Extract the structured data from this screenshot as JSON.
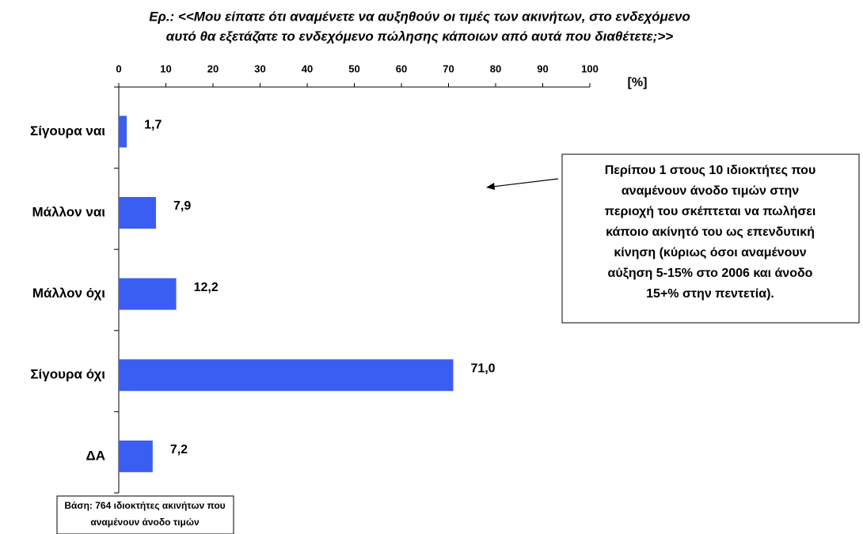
{
  "chart_data": {
    "type": "bar",
    "orientation": "horizontal",
    "title": [
      "Ερ.: <<Μου είπατε ότι αναμένετε να αυξηθούν οι τιμές των ακινήτων, στο ενδεχόμενο",
      "αυτό θα εξετάζατε το ενδεχόμενο πώλησης κάποιων από αυτά που διαθέτετε;>>"
    ],
    "xlabel": "[%]",
    "categories": [
      "Σίγουρα ναι",
      "Μάλλον ναι",
      "Μάλλον όχι",
      "Σίγουρα όχι",
      "ΔΑ"
    ],
    "values": [
      1.7,
      7.9,
      12.2,
      71.0,
      7.2
    ],
    "value_labels": [
      "1,7",
      "7,9",
      "12,2",
      "71,0",
      "7,2"
    ],
    "color": "#3b5ef2",
    "xlim": [
      0,
      100
    ],
    "xticks": [
      0,
      10,
      20,
      30,
      40,
      50,
      60,
      70,
      80,
      90,
      100
    ],
    "annotation": [
      "Περίπου 1 στους 10 ιδιοκτήτες που",
      "αναμένουν άνοδο τιμών στην",
      "περιοχή του σκέπτεται να πωλήσει",
      "κάποιο ακίνητό του ως επενδυτική",
      "κίνηση (κύριως όσοι αναμένουν",
      "αύξηση 5-15% στο 2006 και άνοδο",
      "15+% στην πεντετία)."
    ],
    "note": [
      "Βάση: 764 ιδιοκτήτες ακινήτων που",
      "αναμένουν άνοδο τιμών"
    ]
  }
}
